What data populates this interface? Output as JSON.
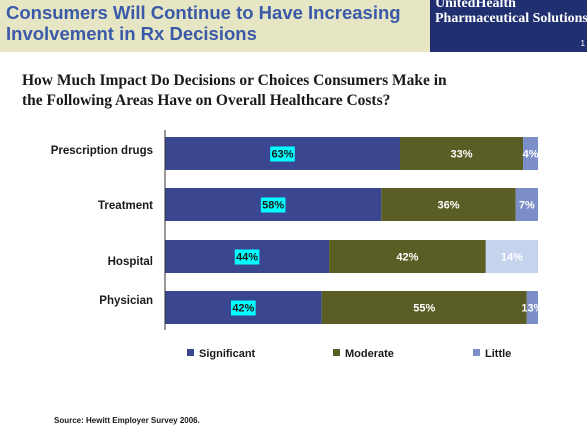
{
  "header": {
    "title_line1": "Consumers Will Continue to Have Increasing",
    "title_line2": "Involvement in Rx Decisions",
    "logo_line1": "UnitedHealth",
    "logo_line2": "Pharmaceutical Solutions",
    "page_mark": "1"
  },
  "question": {
    "line1": "How Much Impact Do Decisions or Choices Consumers Make in",
    "line2": "the Following Areas Have on Overall Healthcare Costs?"
  },
  "chart_data": {
    "type": "bar",
    "orientation": "horizontal",
    "stacked": true,
    "categories": [
      "Prescription drugs",
      "Treatment",
      "Hospital",
      "Physician"
    ],
    "series": [
      {
        "name": "Significant",
        "values": [
          63,
          58,
          44,
          42
        ],
        "labels": [
          "63%",
          "58%",
          "44%",
          "42%"
        ],
        "color": "#3b4690"
      },
      {
        "name": "Moderate",
        "values": [
          33,
          36,
          42,
          55
        ],
        "labels": [
          "33%",
          "36%",
          "42%",
          "55%"
        ],
        "color": "#5a5d24"
      },
      {
        "name": "Little",
        "values": [
          4,
          7,
          14,
          13
        ],
        "labels": [
          "4%",
          "7%",
          "14%",
          "13%"
        ],
        "color": "#7b8ec8"
      }
    ],
    "label_highlight_color": "#00ffff",
    "legend_position": "bottom",
    "grid": false
  },
  "source": "Source: Hewitt Employer Survey 2006."
}
